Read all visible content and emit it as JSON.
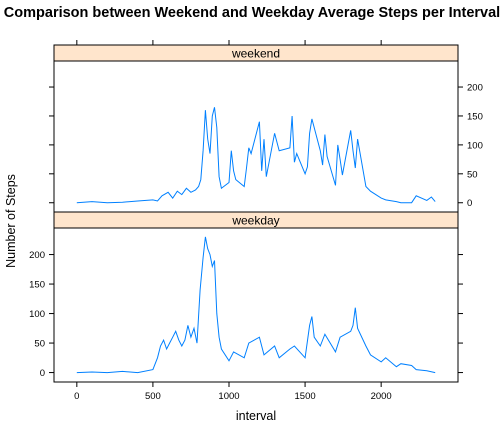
{
  "chart_data": {
    "type": "line",
    "title": "Comparison between Weekend and Weekday Average Steps per Interval",
    "xlabel": "interval",
    "ylabel": "Number of Steps",
    "xlim": [
      0,
      2355
    ],
    "xticks": [
      0,
      500,
      1000,
      1500,
      2000
    ],
    "ylim": [
      0,
      240
    ],
    "yticks": [
      0,
      50,
      100,
      150,
      200
    ],
    "grid": false,
    "line_color": "#0080ff",
    "strip_color": "#ffe5cc",
    "panels": [
      {
        "name": "weekend",
        "x": [
          0,
          100,
          200,
          300,
          400,
          500,
          530,
          560,
          600,
          630,
          660,
          690,
          720,
          750,
          780,
          800,
          815,
          830,
          845,
          860,
          875,
          890,
          905,
          920,
          935,
          950,
          1000,
          1015,
          1030,
          1045,
          1100,
          1115,
          1130,
          1145,
          1200,
          1215,
          1230,
          1245,
          1300,
          1330,
          1400,
          1415,
          1430,
          1445,
          1500,
          1515,
          1530,
          1545,
          1600,
          1615,
          1630,
          1645,
          1700,
          1715,
          1730,
          1745,
          1800,
          1815,
          1830,
          1845,
          1900,
          1930,
          2000,
          2030,
          2100,
          2130,
          2200,
          2230,
          2300,
          2330,
          2355
        ],
        "y": [
          0,
          2,
          0,
          1,
          3,
          5,
          3,
          12,
          18,
          8,
          20,
          14,
          25,
          18,
          22,
          28,
          40,
          90,
          160,
          110,
          85,
          150,
          165,
          130,
          45,
          25,
          35,
          90,
          55,
          40,
          28,
          60,
          95,
          85,
          140,
          55,
          110,
          45,
          120,
          90,
          95,
          150,
          70,
          85,
          50,
          62,
          120,
          145,
          90,
          65,
          118,
          80,
          30,
          100,
          75,
          48,
          125,
          90,
          60,
          110,
          28,
          20,
          8,
          5,
          2,
          0,
          0,
          12,
          4,
          10,
          2
        ]
      },
      {
        "name": "weekday",
        "x": [
          0,
          100,
          200,
          300,
          400,
          500,
          530,
          550,
          570,
          590,
          610,
          630,
          650,
          670,
          690,
          710,
          730,
          750,
          770,
          790,
          810,
          830,
          845,
          860,
          875,
          890,
          905,
          920,
          935,
          950,
          1000,
          1030,
          1100,
          1130,
          1200,
          1230,
          1300,
          1330,
          1400,
          1430,
          1500,
          1530,
          1545,
          1560,
          1600,
          1630,
          1700,
          1730,
          1800,
          1815,
          1830,
          1845,
          1900,
          1930,
          2000,
          2030,
          2100,
          2130,
          2200,
          2230,
          2300,
          2355
        ],
        "y": [
          0,
          1,
          0,
          2,
          0,
          5,
          25,
          45,
          55,
          40,
          50,
          60,
          70,
          55,
          45,
          55,
          80,
          60,
          75,
          50,
          140,
          195,
          230,
          210,
          200,
          180,
          190,
          100,
          60,
          40,
          20,
          35,
          25,
          50,
          60,
          30,
          45,
          25,
          40,
          45,
          25,
          80,
          95,
          60,
          45,
          65,
          35,
          60,
          70,
          80,
          110,
          75,
          45,
          30,
          18,
          25,
          10,
          15,
          12,
          5,
          3,
          0
        ]
      }
    ]
  }
}
